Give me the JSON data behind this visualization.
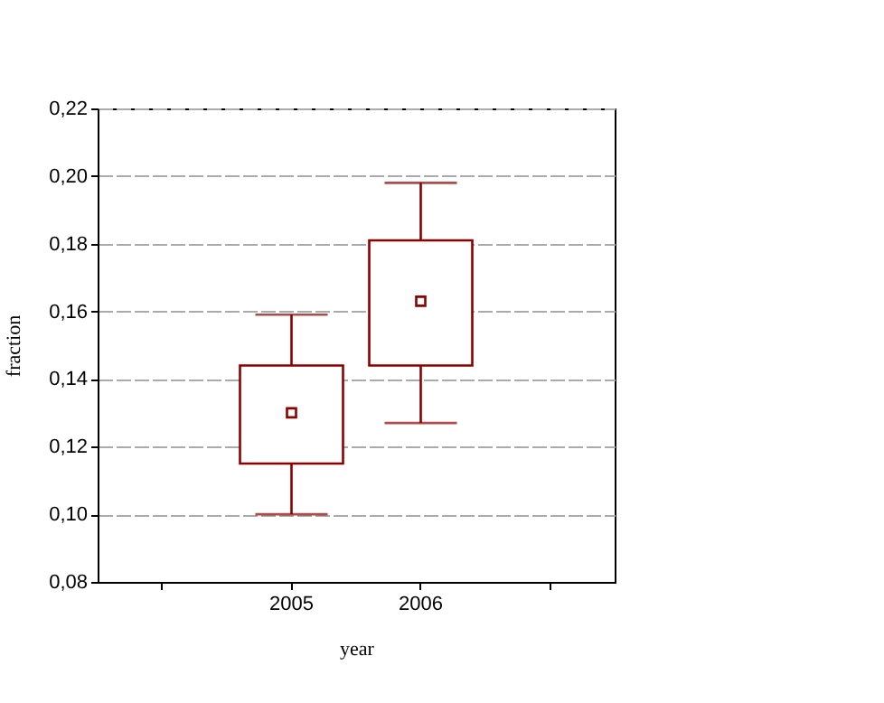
{
  "chart_data": {
    "type": "box",
    "xlabel": "year",
    "ylabel": "fraction",
    "categories": [
      null,
      "2005",
      "2006",
      null
    ],
    "boxes": [
      null,
      {
        "low": 0.1,
        "q1": 0.115,
        "median": 0.13,
        "q3": 0.144,
        "high": 0.159
      },
      {
        "low": 0.127,
        "q1": 0.144,
        "median": 0.163,
        "q3": 0.181,
        "high": 0.198
      },
      null
    ],
    "color": "#8b0000",
    "ylim": [
      0.08,
      0.22
    ],
    "yticks": [
      {
        "value": 0.08,
        "label": "0,08"
      },
      {
        "value": 0.1,
        "label": "0,10"
      },
      {
        "value": 0.12,
        "label": "0,12"
      },
      {
        "value": 0.14,
        "label": "0,14"
      },
      {
        "value": 0.16,
        "label": "0,16"
      },
      {
        "value": 0.18,
        "label": "0,18"
      },
      {
        "value": 0.2,
        "label": "0,20"
      },
      {
        "value": 0.22,
        "label": "0,22"
      }
    ],
    "grid": "y"
  }
}
